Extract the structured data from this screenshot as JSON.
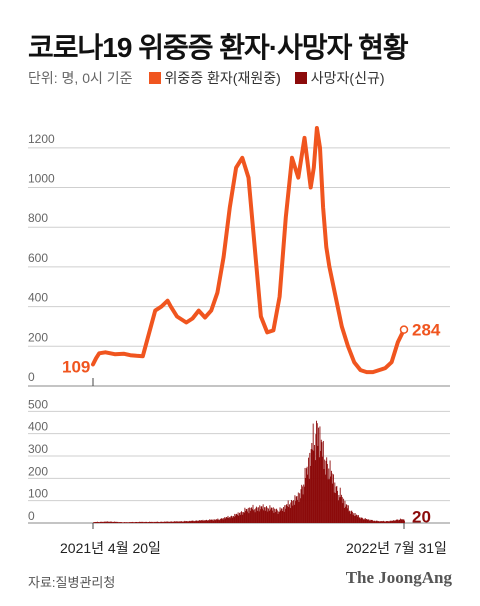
{
  "title": "코로나19 위중증 환자·사망자 현황",
  "unit_note": "단위: 명, 0시 기준",
  "colors": {
    "severe": "#f0551f",
    "deaths": "#8c0b0b",
    "grid": "#cfcfcf"
  },
  "footer": {
    "source": "자료:질병관리청",
    "logo": "The JoongAng"
  },
  "chart_data": [
    {
      "type": "line",
      "name": "위중증 환자(재원중)",
      "x_start_label": "2021년 4월 20일",
      "x_end_label": "2022년 7월 31일",
      "ylim": [
        0,
        1300
      ],
      "yticks": [
        0,
        200,
        400,
        600,
        800,
        1000,
        1200
      ],
      "start_value": 109,
      "end_value": 284,
      "x": [
        0,
        0.01,
        0.02,
        0.04,
        0.07,
        0.1,
        0.12,
        0.14,
        0.16,
        0.2,
        0.22,
        0.24,
        0.25,
        0.27,
        0.3,
        0.32,
        0.34,
        0.36,
        0.38,
        0.4,
        0.42,
        0.44,
        0.46,
        0.48,
        0.5,
        0.52,
        0.54,
        0.56,
        0.58,
        0.6,
        0.62,
        0.64,
        0.66,
        0.68,
        0.7,
        0.71,
        0.72,
        0.73,
        0.74,
        0.75,
        0.76,
        0.78,
        0.8,
        0.82,
        0.84,
        0.86,
        0.88,
        0.9,
        0.92,
        0.94,
        0.96,
        0.97,
        0.98,
        1.0
      ],
      "values": [
        109,
        140,
        165,
        170,
        160,
        162,
        155,
        152,
        150,
        380,
        400,
        430,
        400,
        350,
        320,
        340,
        380,
        345,
        380,
        470,
        650,
        900,
        1100,
        1150,
        1050,
        700,
        350,
        270,
        280,
        450,
        850,
        1150,
        1050,
        1250,
        1000,
        1100,
        1300,
        1200,
        900,
        700,
        600,
        450,
        300,
        200,
        120,
        80,
        70,
        70,
        80,
        90,
        120,
        170,
        220,
        284
      ]
    },
    {
      "type": "bar",
      "name": "사망자(신규)",
      "ylim": [
        0,
        600
      ],
      "yticks": [
        0,
        100,
        200,
        300,
        400,
        500
      ],
      "end_value": 20,
      "x": [
        0,
        0.05,
        0.1,
        0.15,
        0.2,
        0.25,
        0.3,
        0.35,
        0.4,
        0.45,
        0.5,
        0.55,
        0.6,
        0.63,
        0.66,
        0.68,
        0.7,
        0.72,
        0.74,
        0.76,
        0.78,
        0.8,
        0.82,
        0.84,
        0.86,
        0.88,
        0.9,
        0.92,
        0.94,
        0.96,
        0.98,
        1.0
      ],
      "values": [
        5,
        8,
        4,
        6,
        6,
        8,
        10,
        15,
        20,
        40,
        80,
        90,
        70,
        110,
        150,
        250,
        400,
        550,
        380,
        300,
        200,
        140,
        80,
        50,
        30,
        20,
        15,
        10,
        10,
        12,
        20,
        20
      ]
    }
  ]
}
